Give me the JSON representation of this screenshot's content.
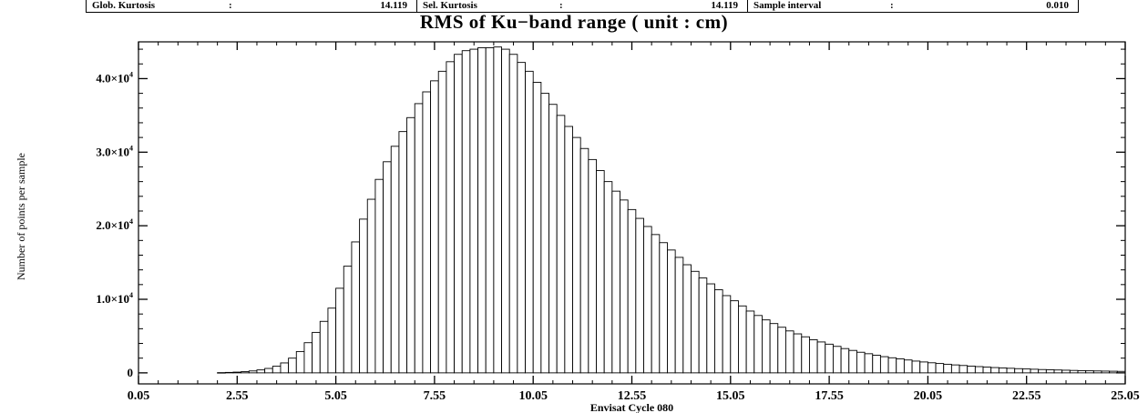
{
  "stats_row": [
    {
      "name": "Glob. Kurtosis",
      "colon": ":",
      "value": "14.119"
    },
    {
      "name": "Sel. Kurtosis",
      "colon": ":",
      "value": "14.119"
    },
    {
      "name": "Sample interval",
      "colon": ":",
      "value": "0.010"
    }
  ],
  "chart_data": {
    "type": "bar",
    "title": "RMS of Ku−band range  ( unit : cm)",
    "xlabel": "Envisat Cycle 080",
    "ylabel": "Number of points per sample",
    "xlim": [
      0.05,
      25.05
    ],
    "ylim": [
      -1500,
      45000
    ],
    "x_ticks": [
      "0.05",
      "2.55",
      "5.05",
      "7.55",
      "10.05",
      "12.55",
      "15.05",
      "17.55",
      "20.05",
      "22.55",
      "25.05"
    ],
    "y_ticks": [
      {
        "value": 0,
        "mantissa": "0",
        "exponent": ""
      },
      {
        "value": 10000,
        "mantissa": "1.0×10",
        "exponent": "4"
      },
      {
        "value": 20000,
        "mantissa": "2.0×10",
        "exponent": "4"
      },
      {
        "value": 30000,
        "mantissa": "3.0×10",
        "exponent": "4"
      },
      {
        "value": 40000,
        "mantissa": "4.0×10",
        "exponent": "4"
      }
    ],
    "bin_start": 2.05,
    "bin_width": 0.2,
    "values": [
      30,
      60,
      100,
      160,
      260,
      400,
      600,
      900,
      1350,
      2000,
      2900,
      4100,
      5500,
      7000,
      8800,
      11500,
      14500,
      17800,
      20900,
      23600,
      26300,
      28700,
      30800,
      32800,
      34700,
      36600,
      38200,
      39700,
      41000,
      42300,
      43300,
      43800,
      44000,
      44200,
      44200,
      44300,
      44000,
      43300,
      42200,
      41000,
      39500,
      38000,
      36500,
      35000,
      33500,
      32000,
      30500,
      29000,
      27500,
      26000,
      24700,
      23500,
      22200,
      21000,
      19900,
      18800,
      17700,
      16700,
      15700,
      14700,
      13800,
      12900,
      12100,
      11300,
      10500,
      9800,
      9100,
      8400,
      7800,
      7200,
      6700,
      6200,
      5700,
      5300,
      4900,
      4500,
      4200,
      3900,
      3600,
      3300,
      3050,
      2800,
      2600,
      2400,
      2200,
      2050,
      1900,
      1750,
      1600,
      1480,
      1370,
      1270,
      1170,
      1080,
      1000,
      920,
      850,
      780,
      720,
      670,
      620,
      570,
      530,
      490,
      450,
      420,
      390,
      360,
      330,
      300,
      280,
      260,
      240,
      220,
      200
    ]
  }
}
